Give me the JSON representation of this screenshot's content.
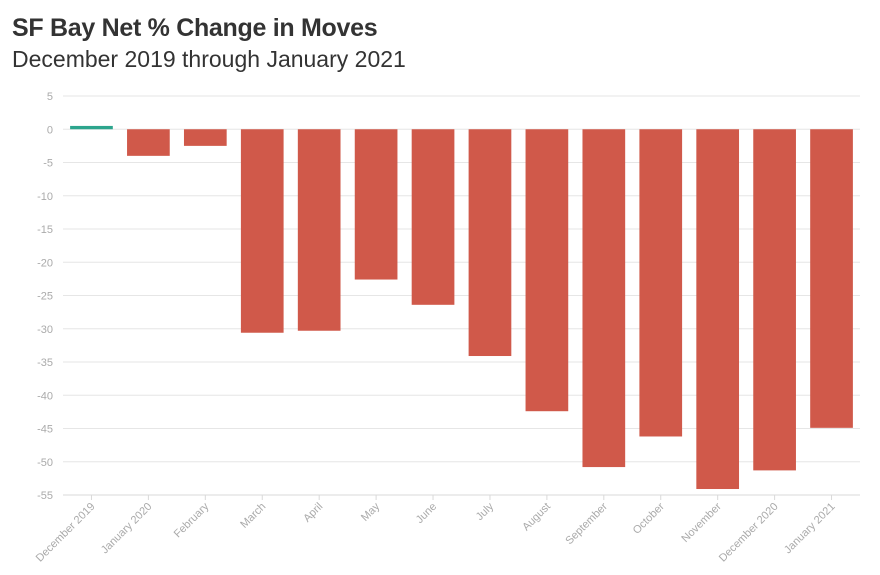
{
  "header": {
    "title": "SF Bay Net % Change in Moves",
    "subtitle": "December 2019 through January 2021"
  },
  "colors": {
    "positive": "#2ca58d",
    "negative": "#d0594a",
    "grid": "#e6e6e6",
    "axis": "#d9d9d9",
    "tick_text": "#aaaaaa"
  },
  "chart_data": {
    "type": "bar",
    "title": "SF Bay Net % Change in Moves",
    "subtitle": "December 2019 through January 2021",
    "xlabel": "",
    "ylabel": "",
    "ylim": [
      -55,
      5
    ],
    "yticks": [
      5,
      0,
      -5,
      -10,
      -15,
      -20,
      -25,
      -30,
      -35,
      -40,
      -45,
      -50,
      -55
    ],
    "grid": true,
    "categories": [
      "December 2019",
      "January 2020",
      "February",
      "March",
      "April",
      "May",
      "June",
      "July",
      "August",
      "September",
      "October",
      "November",
      "December 2020",
      "January 2021"
    ],
    "values": [
      0.5,
      -4,
      -2.5,
      -30.6,
      -30.3,
      -22.6,
      -26.4,
      -34.1,
      -42.4,
      -50.8,
      -46.2,
      -54.1,
      -51.3,
      -44.9
    ]
  }
}
